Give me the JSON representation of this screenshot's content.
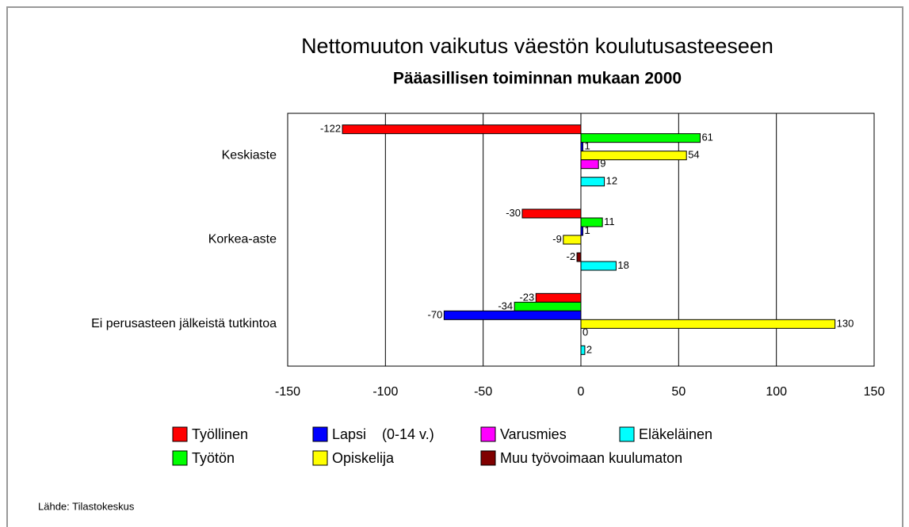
{
  "chart_data": {
    "type": "bar",
    "orientation": "horizontal",
    "title": "Nettomuuton vaikutus väestön koulutusasteeseen",
    "subtitle": "Pääasillisen toiminnan mukaan 2000",
    "source": "Lähde: Tilastokeskus",
    "categories": [
      "Keskiaste",
      "Korkea-aste",
      "Ei perusasteen jälkeistä tutkintoa"
    ],
    "series": [
      {
        "name": "Työllinen",
        "color": "#ff0000",
        "values": [
          -122,
          -30,
          -23
        ]
      },
      {
        "name": "Työtön",
        "color": "#00ff00",
        "values": [
          61,
          11,
          -34
        ]
      },
      {
        "name": "Lapsi    (0-14 v.)",
        "color": "#0000ff",
        "values": [
          1,
          1,
          -70
        ]
      },
      {
        "name": "Opiskelija",
        "color": "#ffff00",
        "values": [
          54,
          -9,
          130
        ]
      },
      {
        "name": "Varusmies",
        "color": "#ff00ff",
        "values": [
          9,
          null,
          0
        ]
      },
      {
        "name": "Muu työvoimaan kuulumaton",
        "color": "#800000",
        "values": [
          null,
          -2,
          null
        ]
      },
      {
        "name": "Eläkeläinen",
        "color": "#00ffff",
        "values": [
          12,
          18,
          2
        ]
      }
    ],
    "xlim": [
      -150,
      150
    ],
    "xticks": [
      -150,
      -100,
      -50,
      0,
      50,
      100,
      150
    ],
    "grid": true
  }
}
